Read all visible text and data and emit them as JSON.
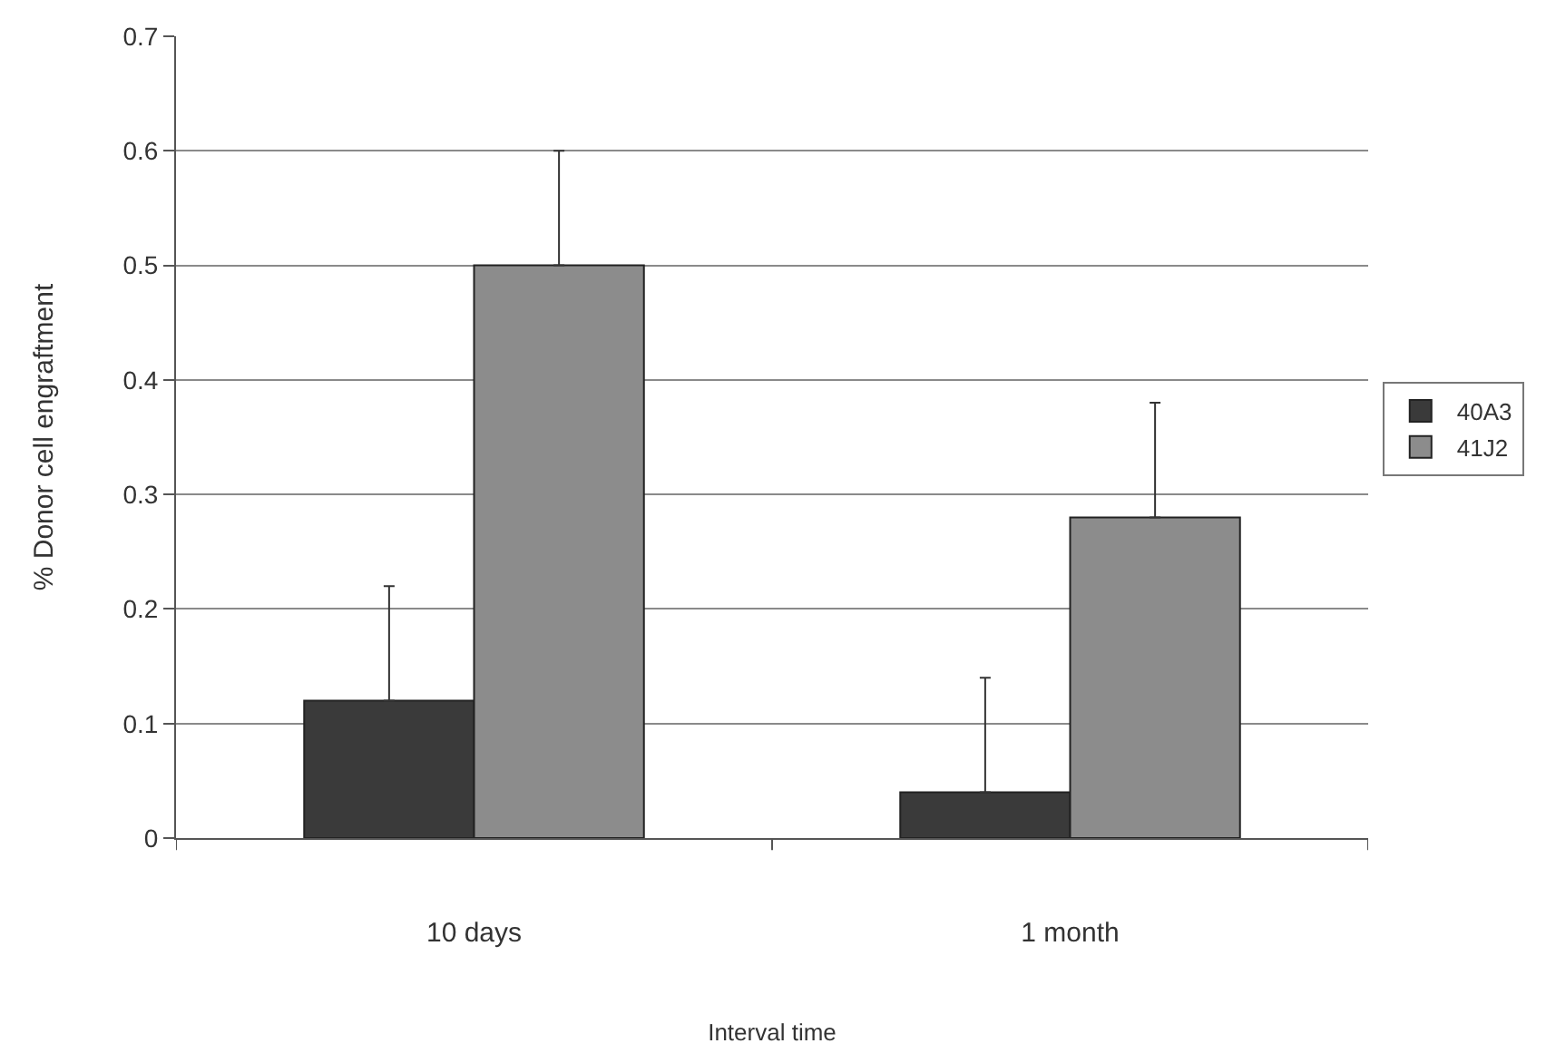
{
  "chart_data": {
    "type": "bar",
    "xlabel": "Interval time",
    "ylabel": "% Donor cell engraftment",
    "categories": [
      "10 days",
      "1 month"
    ],
    "series": [
      {
        "name": "40A3",
        "color": "#3a3a3a",
        "values": [
          0.12,
          0.04
        ],
        "errors": [
          [
            0.12,
            0.22
          ],
          [
            0.04,
            0.14
          ]
        ]
      },
      {
        "name": "41J2",
        "color": "#8c8c8c",
        "values": [
          0.5,
          0.28
        ],
        "errors": [
          [
            0.5,
            0.6
          ],
          [
            0.28,
            0.38
          ]
        ]
      }
    ],
    "ylim": [
      0,
      0.7
    ],
    "yticks": [
      0,
      0.1,
      0.2,
      0.3,
      0.4,
      0.5,
      0.6,
      0.7
    ],
    "grid": "y",
    "legend": "right"
  }
}
